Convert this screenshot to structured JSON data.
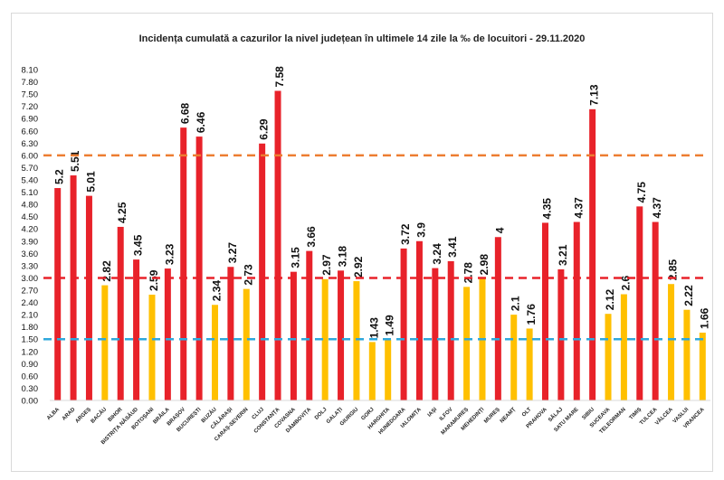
{
  "chart_data": {
    "type": "bar",
    "title": "Incidența cumulată a cazurilor la nivel județean în ultimele 14 zile la ‰ de locuitori - 29.11.2020",
    "xlabel": "",
    "ylabel": "",
    "ylim": [
      0,
      8.1
    ],
    "yticks": [
      "0.00",
      "0.30",
      "0.60",
      "0.90",
      "1.20",
      "1.50",
      "1.80",
      "2.10",
      "2.40",
      "2.70",
      "3.00",
      "3.30",
      "3.60",
      "3.90",
      "4.20",
      "4.50",
      "4.80",
      "5.10",
      "5.40",
      "5.70",
      "6.00",
      "6.30",
      "6.60",
      "6.90",
      "7.20",
      "7.50",
      "7.80",
      "8.10"
    ],
    "grid": false,
    "legend": "none",
    "categories": [
      "ALBA",
      "ARAD",
      "ARGEȘ",
      "BACĂU",
      "BIHOR",
      "BISTRIȚA NĂSĂUD",
      "BOTOȘANI",
      "BRĂILA",
      "BRAȘOV",
      "BUCUREȘTI",
      "BUZĂU",
      "CĂLĂRAȘI",
      "CARAȘ-SEVERIN",
      "CLUJ",
      "CONSTANȚA",
      "COVASNA",
      "DÂMBOVIȚA",
      "DOLJ",
      "GALAȚI",
      "GIURGIU",
      "GORJ",
      "HARGHITA",
      "HUNEDOARA",
      "IALOMIȚA",
      "IAȘI",
      "ILFOV",
      "MARAMUREȘ",
      "MEHEDINȚI",
      "MUREȘ",
      "NEAMȚ",
      "OLT",
      "PRAHOVA",
      "SĂLAJ",
      "SATU MARE",
      "SIBIU",
      "SUCEAVA",
      "TELEORMAN",
      "TIMIȘ",
      "TULCEA",
      "VÂLCEA",
      "VASLUI",
      "VRANCEA"
    ],
    "values": [
      5.2,
      5.51,
      5.01,
      2.82,
      4.25,
      3.45,
      2.59,
      3.23,
      6.68,
      6.46,
      2.34,
      3.27,
      2.73,
      6.29,
      7.58,
      3.15,
      3.66,
      2.97,
      3.18,
      2.92,
      1.43,
      1.49,
      3.72,
      3.9,
      3.24,
      3.41,
      2.78,
      2.98,
      4.0,
      2.1,
      1.76,
      4.35,
      3.21,
      4.37,
      7.13,
      2.12,
      2.6,
      4.75,
      4.37,
      2.85,
      2.22,
      1.66
    ],
    "value_labels": [
      "5.2",
      "5.51",
      "5.01",
      "2.82",
      "4.25",
      "3.45",
      "2.59",
      "3.23",
      "6.68",
      "6.46",
      "2.34",
      "3.27",
      "2.73",
      "6.29",
      "7.58",
      "3.15",
      "3.66",
      "2.97",
      "3.18",
      "2.92",
      "1.43",
      "1.49",
      "3.72",
      "3.9",
      "3.24",
      "3.41",
      "2.78",
      "2.98",
      "4",
      "2.1",
      "1.76",
      "4.35",
      "3.21",
      "4.37",
      "7.13",
      "2.12",
      "2.6",
      "4.75",
      "4.37",
      "2.85",
      "2.22",
      "1.66"
    ],
    "reference_lines": [
      {
        "value": 6.0,
        "color": "#ED7D31"
      },
      {
        "value": 3.0,
        "color": "#E8222A"
      },
      {
        "value": 1.5,
        "color": "#2FA8DC"
      }
    ],
    "colors": {
      "high": "#E8222A",
      "low": "#FFC000"
    }
  }
}
